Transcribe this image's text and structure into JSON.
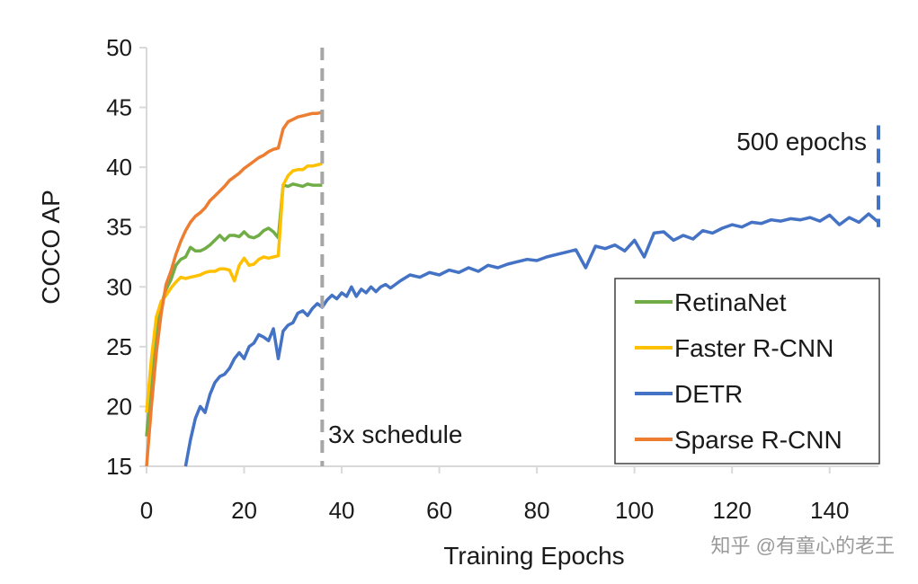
{
  "chart_data": {
    "type": "line",
    "xlabel": "Training Epochs",
    "ylabel": "COCO AP",
    "xlim": [
      0,
      150
    ],
    "ylim": [
      15,
      50
    ],
    "xticks": [
      0,
      20,
      40,
      60,
      80,
      100,
      120,
      140
    ],
    "yticks": [
      15,
      20,
      25,
      30,
      35,
      40,
      45,
      50
    ],
    "legend": [
      "RetinaNet",
      "Faster R-CNN",
      "DETR",
      "Sparse R-CNN"
    ],
    "legend_position": "bottom-right",
    "series": [
      {
        "name": "RetinaNet",
        "color": "#70ad47",
        "x": [
          0,
          1,
          2,
          3,
          4,
          5,
          6,
          7,
          8,
          9,
          10,
          11,
          12,
          13,
          14,
          15,
          16,
          17,
          18,
          19,
          20,
          21,
          22,
          23,
          24,
          25,
          26,
          27,
          28,
          29,
          30,
          31,
          32,
          33,
          34,
          35,
          36
        ],
        "values": [
          17.5,
          22,
          26.5,
          28.5,
          29.8,
          30.6,
          31.8,
          32.3,
          32.5,
          33.3,
          33.0,
          33.0,
          33.2,
          33.5,
          33.9,
          34.3,
          33.9,
          34.3,
          34.3,
          34.2,
          34.6,
          34.2,
          34.1,
          34.3,
          34.7,
          34.9,
          34.6,
          34.1,
          38.5,
          38.4,
          38.6,
          38.5,
          38.4,
          38.6,
          38.5,
          38.5,
          38.5
        ]
      },
      {
        "name": "Faster R-CNN",
        "color": "#ffc000",
        "x": [
          0,
          1,
          2,
          3,
          4,
          5,
          6,
          7,
          8,
          9,
          10,
          11,
          12,
          13,
          14,
          15,
          16,
          17,
          18,
          19,
          20,
          21,
          22,
          23,
          24,
          25,
          26,
          27,
          28,
          29,
          30,
          31,
          32,
          33,
          34,
          35,
          36
        ],
        "values": [
          19.5,
          24,
          27.5,
          28.8,
          29.3,
          29.9,
          30.4,
          30.8,
          30.7,
          30.8,
          30.9,
          31.0,
          31.2,
          31.3,
          31.3,
          31.5,
          31.5,
          31.4,
          30.5,
          31.8,
          32.4,
          31.8,
          31.9,
          32.3,
          32.5,
          32.4,
          32.5,
          32.6,
          38.5,
          39.3,
          39.7,
          39.8,
          39.8,
          40.1,
          40.1,
          40.2,
          40.3
        ]
      },
      {
        "name": "DETR",
        "color": "#4472c4",
        "x": [
          8,
          9,
          10,
          11,
          12,
          13,
          14,
          15,
          16,
          17,
          18,
          19,
          20,
          21,
          22,
          23,
          24,
          25,
          26,
          27,
          28,
          29,
          30,
          31,
          32,
          33,
          34,
          35,
          36,
          37,
          38,
          39,
          40,
          41,
          42,
          43,
          44,
          45,
          46,
          47,
          48,
          49,
          50,
          52,
          54,
          56,
          58,
          60,
          62,
          64,
          66,
          68,
          70,
          72,
          74,
          76,
          78,
          80,
          82,
          84,
          86,
          88,
          90,
          92,
          94,
          96,
          98,
          100,
          102,
          104,
          106,
          108,
          110,
          112,
          114,
          116,
          118,
          120,
          122,
          124,
          126,
          128,
          130,
          132,
          134,
          136,
          138,
          140,
          142,
          144,
          146,
          148,
          150
        ],
        "values": [
          15,
          17.2,
          19.0,
          20.0,
          19.5,
          21.0,
          22.0,
          22.5,
          22.7,
          23.2,
          24.0,
          24.5,
          24.0,
          25.0,
          25.3,
          26.0,
          25.8,
          25.5,
          26.5,
          24.0,
          26.3,
          26.8,
          27.0,
          27.8,
          28.0,
          27.6,
          28.2,
          28.6,
          28.3,
          28.9,
          29.3,
          29.0,
          29.5,
          29.2,
          30.0,
          29.2,
          29.8,
          29.5,
          30.0,
          29.6,
          30.0,
          30.2,
          29.9,
          30.5,
          31.0,
          30.8,
          31.2,
          31.0,
          31.4,
          31.2,
          31.6,
          31.3,
          31.8,
          31.6,
          31.9,
          32.1,
          32.3,
          32.2,
          32.5,
          32.7,
          32.9,
          33.1,
          31.6,
          33.4,
          33.2,
          33.5,
          33.0,
          33.9,
          32.5,
          34.5,
          34.6,
          33.9,
          34.3,
          34.0,
          34.7,
          34.5,
          34.9,
          35.2,
          35.0,
          35.4,
          35.3,
          35.6,
          35.5,
          35.7,
          35.6,
          35.8,
          35.5,
          36.0,
          35.2,
          35.8,
          35.4,
          36.1,
          35.4
        ]
      },
      {
        "name": "Sparse R-CNN",
        "color": "#ed7d31",
        "x": [
          0,
          1,
          2,
          3,
          4,
          5,
          6,
          7,
          8,
          9,
          10,
          11,
          12,
          13,
          14,
          15,
          16,
          17,
          18,
          19,
          20,
          21,
          22,
          23,
          24,
          25,
          26,
          27,
          28,
          29,
          30,
          31,
          32,
          33,
          34,
          35,
          36
        ],
        "values": [
          15,
          20,
          24.5,
          27.8,
          30.2,
          31.3,
          32.7,
          33.8,
          34.7,
          35.4,
          35.9,
          36.2,
          36.6,
          37.2,
          37.6,
          38.0,
          38.4,
          38.9,
          39.2,
          39.5,
          39.9,
          40.2,
          40.5,
          40.8,
          41.0,
          41.3,
          41.5,
          41.6,
          43.2,
          43.8,
          44.0,
          44.2,
          44.3,
          44.4,
          44.5,
          44.5,
          44.6
        ]
      }
    ],
    "annotations": [
      {
        "text": "3x schedule",
        "marker_x": 36,
        "style": "dashed-vertical-gray"
      },
      {
        "text": "500 epochs",
        "marker_x": 150,
        "marker_y_range": [
          35,
          43.5
        ],
        "style": "dashed-vertical-blue"
      }
    ]
  },
  "watermark": "知乎 @有童心的老王",
  "colors": {
    "axis": "#d9d9d9",
    "schedule_line": "#a6a6a6",
    "legend_border": "#404040"
  }
}
